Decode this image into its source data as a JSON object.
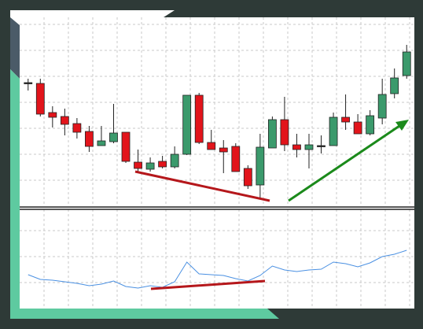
{
  "chart_data": [
    {
      "type": "candlestick",
      "categories": [
        null,
        null,
        null,
        null,
        null,
        null,
        null,
        null,
        null,
        null,
        null,
        null,
        null,
        null,
        null,
        null,
        null,
        null,
        null,
        null,
        null,
        null,
        null,
        null,
        null,
        null,
        null,
        null,
        null,
        null,
        null,
        null
      ],
      "open": [
        157,
        156,
        119,
        114,
        105,
        95,
        77,
        82,
        94,
        56,
        47,
        57,
        50,
        66,
        141,
        81,
        74,
        76,
        48,
        27,
        74,
        110,
        78,
        72,
        77,
        77,
        113,
        107,
        92,
        112,
        143,
        166
      ],
      "high": [
        162,
        162,
        127,
        124,
        112,
        102,
        102,
        130,
        94,
        72,
        62,
        64,
        76,
        141,
        144,
        97,
        84,
        80,
        52,
        92,
        114,
        139,
        92,
        92,
        90,
        119,
        142,
        117,
        122,
        162,
        175,
        205
      ],
      "low": [
        147,
        114,
        100,
        90,
        86,
        69,
        77,
        80,
        55,
        44,
        44,
        48,
        48,
        65,
        79,
        72,
        42,
        44,
        22,
        10,
        74,
        70,
        62,
        48,
        67,
        77,
        97,
        92,
        90,
        104,
        137,
        162
      ],
      "close": [
        157,
        117,
        113,
        104,
        94,
        76,
        83,
        93,
        57,
        48,
        55,
        50,
        66,
        141,
        81,
        72,
        69,
        44,
        26,
        75,
        110,
        78,
        72,
        78,
        77,
        113,
        107,
        92,
        115,
        142,
        163,
        196
      ],
      "up_color": "#3b9a6c",
      "down_color": "#e2141b",
      "flat_color": "#222222",
      "ylim": [
        0,
        240
      ],
      "grid": true
    },
    {
      "type": "line",
      "categories": [
        null,
        null,
        null,
        null,
        null,
        null,
        null,
        null,
        null,
        null,
        null,
        null,
        null,
        null,
        null,
        null,
        null,
        null,
        null,
        null,
        null,
        null,
        null,
        null,
        null,
        null,
        null,
        null,
        null,
        null,
        null,
        null
      ],
      "values": [
        43,
        37,
        36,
        34,
        32,
        29,
        31,
        35,
        28,
        26,
        29,
        27,
        34,
        59,
        44,
        43,
        42,
        38,
        35,
        42,
        54,
        49,
        47,
        49,
        50,
        59,
        57,
        53,
        58,
        66,
        69,
        74
      ],
      "color": "#4a90e2",
      "ylim": [
        0,
        126
      ],
      "grid": true
    }
  ]
}
